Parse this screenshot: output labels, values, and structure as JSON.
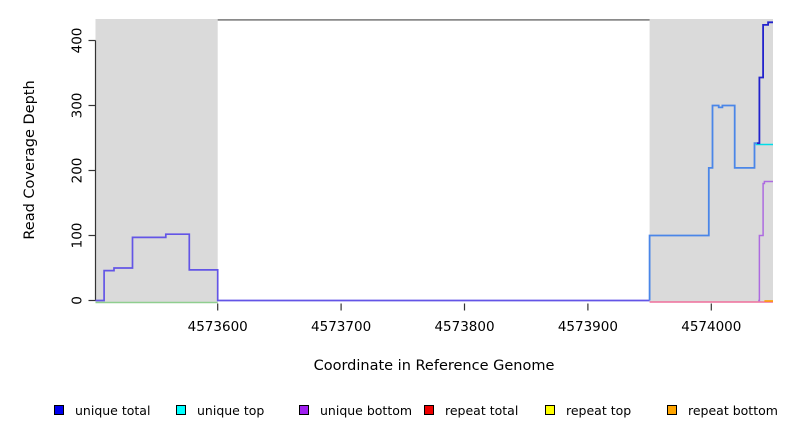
{
  "chart_data": {
    "type": "line",
    "subtype": "step-coverage",
    "title": "",
    "xlabel": "Coordinate in Reference Genome",
    "ylabel": "Read Coverage Depth",
    "xlim": [
      4573501,
      4574050
    ],
    "ylim": [
      0,
      433
    ],
    "grid": "off",
    "legend_position": "bottom",
    "x_ticks": {
      "values": [
        4573600,
        4573700,
        4573800,
        4573900,
        4574000
      ],
      "labels": [
        "4573600",
        "4573700",
        "4573800",
        "4573900",
        "4574000"
      ]
    },
    "y_ticks": {
      "values": [
        0,
        100,
        200,
        300,
        400
      ],
      "labels": [
        "0",
        "100",
        "200",
        "300",
        "400"
      ]
    },
    "region_color": "#dadada",
    "masked_regions": [
      {
        "x0": 4573501,
        "x1": 4573600
      },
      {
        "x0": 4573950,
        "x1": 4574050
      }
    ],
    "top_border": {
      "from": 4573600,
      "to": 4573950,
      "color": "#8a8a8a"
    },
    "series": [
      {
        "name": "baseline-left-green",
        "color": "#8fce8f",
        "width": 1.4,
        "dy": 2,
        "points": [
          [
            4573501,
            0
          ],
          [
            4573600,
            0
          ]
        ]
      },
      {
        "name": "unique-left-blueviolet",
        "color": "#6355e6",
        "width": 1.7,
        "dy": 0,
        "points": [
          [
            4573501,
            0
          ],
          [
            4573508,
            0
          ],
          [
            4573508,
            46
          ],
          [
            4573516,
            46
          ],
          [
            4573516,
            50
          ],
          [
            4573531,
            50
          ],
          [
            4573531,
            97
          ],
          [
            4573558,
            97
          ],
          [
            4573558,
            102
          ],
          [
            4573577,
            102
          ],
          [
            4573577,
            47
          ],
          [
            4573600,
            47
          ],
          [
            4573600,
            0
          ],
          [
            4573950,
            0
          ]
        ]
      },
      {
        "name": "repeat-zero-pink",
        "color": "#ef6f9b",
        "width": 1.4,
        "dy": 1.5,
        "points": [
          [
            4573950,
            0
          ],
          [
            4574050,
            0
          ]
        ]
      },
      {
        "name": "unique-total-right-lightblue",
        "color": "#4a86e8",
        "width": 1.8,
        "dy": 0,
        "points": [
          [
            4573950,
            0
          ],
          [
            4573950,
            100
          ],
          [
            4573998,
            100
          ],
          [
            4573998,
            204
          ],
          [
            4574001,
            204
          ],
          [
            4574001,
            300
          ],
          [
            4574006,
            300
          ],
          [
            4574006,
            297
          ],
          [
            4574009,
            297
          ],
          [
            4574009,
            300
          ],
          [
            4574019,
            300
          ],
          [
            4574019,
            204
          ],
          [
            4574035,
            204
          ],
          [
            4574035,
            242
          ],
          [
            4574037,
            242
          ]
        ]
      },
      {
        "name": "unique-top-cyan",
        "color": "#00dde8",
        "width": 1.5,
        "dy": 0,
        "points": [
          [
            4574036,
            240
          ],
          [
            4574050,
            240
          ]
        ]
      },
      {
        "name": "unique-total-right-darkblue",
        "color": "#2222cc",
        "width": 1.8,
        "dy": 0,
        "points": [
          [
            4574037,
            242
          ],
          [
            4574039,
            242
          ],
          [
            4574039,
            343
          ],
          [
            4574042,
            343
          ],
          [
            4574042,
            424
          ],
          [
            4574046,
            424
          ],
          [
            4574046,
            428
          ],
          [
            4574050,
            428
          ]
        ]
      },
      {
        "name": "unique-bottom-purple",
        "color": "#ad6be0",
        "width": 1.5,
        "dy": 0,
        "points": [
          [
            4574038,
            0
          ],
          [
            4574039,
            0
          ],
          [
            4574039,
            100
          ],
          [
            4574042,
            100
          ],
          [
            4574042,
            180
          ],
          [
            4574043,
            180
          ],
          [
            4574043,
            183
          ],
          [
            4574050,
            183
          ]
        ]
      },
      {
        "name": "repeat-bottom-orange",
        "color": "#ff9d00",
        "width": 1.6,
        "dy": 0.5,
        "points": [
          [
            4574043,
            0
          ],
          [
            4574050,
            0
          ]
        ]
      }
    ],
    "legend": [
      {
        "label": "unique total",
        "color": "#0000ee"
      },
      {
        "label": "unique top",
        "color": "#00ffff"
      },
      {
        "label": "unique bottom",
        "color": "#a020f0"
      },
      {
        "label": "repeat total",
        "color": "#ee0000"
      },
      {
        "label": "repeat top",
        "color": "#ffff00"
      },
      {
        "label": "repeat bottom",
        "color": "#ffa500"
      }
    ]
  }
}
